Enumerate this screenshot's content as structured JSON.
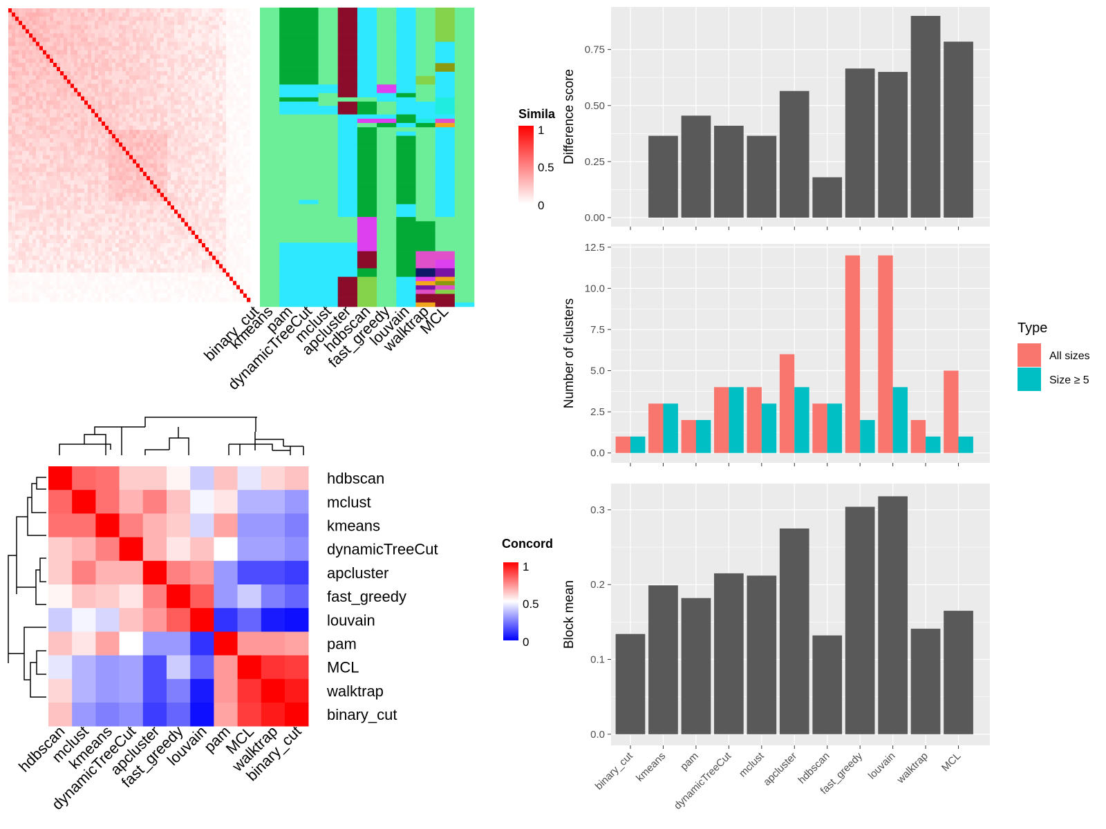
{
  "colors": {
    "sim_high": "#ff0000",
    "sim_low": "#ffffff",
    "conc_high": "#ff0000",
    "conc_mid": "#ffffff",
    "conc_low": "#0000ff",
    "bar_gray": "#595959",
    "panel_bg": "#ebebeb",
    "grid": "#ffffff",
    "all_sizes": "#f8766d",
    "size_ge5": "#00bfc4"
  },
  "similarity_legend": {
    "title": "Simila",
    "ticks": [
      "1",
      "0.5",
      "0"
    ]
  },
  "concordance_legend": {
    "title": "Concord",
    "ticks": [
      "1",
      "0.5",
      "0"
    ]
  },
  "classification_panel": {
    "methods": [
      "binary_cut",
      "kmeans",
      "pam",
      "dynamicTreeCut",
      "mclust",
      "apcluster",
      "hdbscan",
      "fast_greedy",
      "louvain",
      "walktrap",
      "MCL"
    ],
    "palette": {
      "a": "#6ced98",
      "g": "#03aa35",
      "c": "#2de8ff",
      "d": "#8a0b2a",
      "m": "#dd40ee",
      "l": "#84d34a",
      "o": "#8c9a10",
      "n": "#101869",
      "p": "#e051c9",
      "y": "#f2a61c",
      "v": "#7a12a5",
      "t": "#20ece0"
    },
    "rows": [
      "aggadcacala",
      "aggadcacala",
      "aggadcacala",
      "aggadcacala",
      "aggadcacala",
      "aggadcacala",
      "aggadcacala",
      "aggadcacala",
      "aggadcacaca",
      "aggadcacaca",
      "aggadcacaca",
      "aggadcacaca",
      "aggadcacaca",
      "aggadcacaoaa",
      "aggadcacaoa",
      "aggadcacaca",
      "aggadcaclca",
      "aggadcaclca",
      "acccdcmcaca",
      "acccdcmcaca",
      "accadccgaca",
      "aggaaaccata",
      "accadgaccta",
      "acccdgaccta",
      "acccdgaccta",
      "aaaacccgcca",
      "aaaacmmgtpa",
      "aaaacagcgya",
      "aaaacgaaaca",
      "aaaacgacaca",
      "aaaacgagaca",
      "aaaacgagaca",
      "aaaacgagaca",
      "aaaacgagaca",
      "aaaacgagaca",
      "aaaacgagaca",
      "aaaacgagaca",
      "aaaacgagaca",
      "aaaacgagaca",
      "aaaacgagaca",
      "aaaacgagaca",
      "aaaacgagaca",
      "aaaacgagaca",
      "aaaacgagaca",
      "aaaacgagaca",
      "aacacgagaca",
      "aaaacgacaca",
      "aaaacgacaca",
      "aaaacgacaca",
      "aaaaamagaaa",
      "aaaaamaggaa",
      "aaaaamaggaa",
      "aaaaamaggaa",
      "aaaaamaggaa",
      "aaaaamaggaa",
      "accccmaggaa",
      "accccmaggaa",
      "accccdagppa",
      "accccdagppa",
      "accccdagpma",
      "accccdagpma",
      "accccgagnva",
      "accccgagnva",
      "acccdlacmya",
      "acccdlacyoa",
      "acccdlacvpa",
      "acccdlacpla",
      "acccdlacdda",
      "acccdlacdda",
      "acccdlacydc"
    ]
  },
  "concordance": {
    "order": [
      "hdbscan",
      "mclust",
      "kmeans",
      "dynamicTreeCut",
      "apcluster",
      "fast_greedy",
      "louvain",
      "pam",
      "MCL",
      "walktrap",
      "binary_cut"
    ],
    "matrix": [
      [
        1.0,
        0.8,
        0.78,
        0.6,
        0.6,
        0.52,
        0.4,
        0.62,
        0.45,
        0.58,
        0.62
      ],
      [
        0.8,
        1.0,
        0.78,
        0.65,
        0.75,
        0.62,
        0.48,
        0.55,
        0.35,
        0.35,
        0.3
      ],
      [
        0.78,
        0.78,
        1.0,
        0.75,
        0.65,
        0.6,
        0.42,
        0.68,
        0.3,
        0.3,
        0.25
      ],
      [
        0.6,
        0.65,
        0.75,
        1.0,
        0.65,
        0.55,
        0.62,
        0.5,
        0.32,
        0.32,
        0.28
      ],
      [
        0.6,
        0.75,
        0.65,
        0.65,
        1.0,
        0.75,
        0.7,
        0.3,
        0.15,
        0.15,
        0.12
      ],
      [
        0.52,
        0.62,
        0.6,
        0.55,
        0.75,
        1.0,
        0.82,
        0.3,
        0.4,
        0.25,
        0.2
      ],
      [
        0.4,
        0.48,
        0.42,
        0.62,
        0.7,
        0.82,
        1.0,
        0.1,
        0.2,
        0.05,
        0.03
      ],
      [
        0.62,
        0.55,
        0.68,
        0.5,
        0.3,
        0.3,
        0.1,
        1.0,
        0.7,
        0.7,
        0.68
      ],
      [
        0.45,
        0.35,
        0.3,
        0.32,
        0.15,
        0.4,
        0.2,
        0.7,
        1.0,
        0.9,
        0.88
      ],
      [
        0.58,
        0.35,
        0.3,
        0.32,
        0.15,
        0.25,
        0.05,
        0.7,
        0.9,
        1.0,
        0.95
      ],
      [
        0.62,
        0.3,
        0.25,
        0.28,
        0.12,
        0.2,
        0.03,
        0.68,
        0.88,
        0.95,
        1.0
      ]
    ]
  },
  "chart_data": [
    {
      "type": "bar",
      "categories": [
        "binary_cut",
        "kmeans",
        "pam",
        "dynamicTreeCut",
        "mclust",
        "apcluster",
        "hdbscan",
        "fast_greedy",
        "louvain",
        "walktrap",
        "MCL"
      ],
      "values": [
        0.0,
        0.365,
        0.455,
        0.41,
        0.365,
        0.565,
        0.18,
        0.665,
        0.65,
        0.9,
        0.785
      ],
      "title": "",
      "xlabel": "",
      "ylabel": "Difference score",
      "ylim": [
        -0.04,
        0.94
      ],
      "yticks": [
        0,
        0.25,
        0.5,
        0.75
      ],
      "ytick_labels": [
        "0.00",
        "0.25",
        "0.50",
        "0.75"
      ]
    },
    {
      "type": "bar",
      "categories": [
        "binary_cut",
        "kmeans",
        "pam",
        "dynamicTreeCut",
        "mclust",
        "apcluster",
        "hdbscan",
        "fast_greedy",
        "louvain",
        "walktrap",
        "MCL"
      ],
      "series": [
        {
          "name": "All sizes",
          "values": [
            1,
            3,
            2,
            4,
            4,
            6,
            3,
            12,
            12,
            2,
            5
          ]
        },
        {
          "name": "Size ≥ 5",
          "values": [
            1,
            3,
            2,
            4,
            3,
            4,
            3,
            2,
            4,
            1,
            1
          ]
        }
      ],
      "title": "",
      "xlabel": "",
      "ylabel": "Number of clusters",
      "ylim": [
        -0.6,
        12.7
      ],
      "yticks": [
        0,
        2.5,
        5,
        7.5,
        10,
        12.5
      ],
      "ytick_labels": [
        "0.0",
        "2.5",
        "5.0",
        "7.5",
        "10.0",
        "12.5"
      ],
      "legend": {
        "title": "Type",
        "position": "right"
      }
    },
    {
      "type": "bar",
      "categories": [
        "binary_cut",
        "kmeans",
        "pam",
        "dynamicTreeCut",
        "mclust",
        "apcluster",
        "hdbscan",
        "fast_greedy",
        "louvain",
        "walktrap",
        "MCL"
      ],
      "values": [
        0.134,
        0.199,
        0.182,
        0.215,
        0.212,
        0.275,
        0.132,
        0.304,
        0.318,
        0.141,
        0.165
      ],
      "title": "",
      "xlabel": "",
      "ylabel": "Block mean",
      "ylim": [
        -0.015,
        0.335
      ],
      "yticks": [
        0,
        0.1,
        0.2,
        0.3
      ],
      "ytick_labels": [
        "0.0",
        "0.1",
        "0.2",
        "0.3"
      ]
    }
  ]
}
